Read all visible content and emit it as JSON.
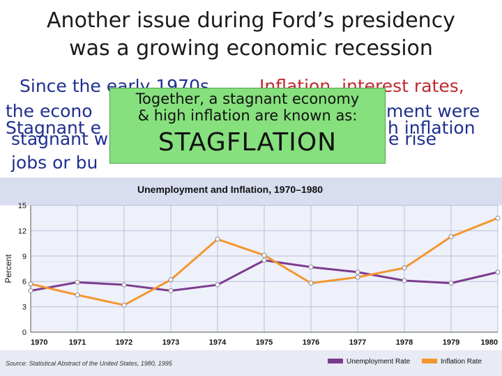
{
  "slide": {
    "title_line1": "Another issue during Ford’s presidency",
    "title_line2": "was a growing economic recession",
    "bg_lines": [
      "Since the early 1970s…",
      "Inflation, interest rates,",
      "the econo",
      "ment were",
      "Stagnant e",
      "h inflation",
      "stagnant w",
      "e rise",
      "jobs or bu"
    ],
    "callout_line1": "Together, a stagnant economy",
    "callout_line2": "& high inflation are known as:",
    "callout_big": "STAGFLATION",
    "colors": {
      "title_text": "#1a1a1a",
      "blue_text": "#1f2f8f",
      "red_text": "#c0282d",
      "callout_bg": "#86e07d"
    }
  },
  "chart_data": {
    "type": "line",
    "title": "Unemployment and Inflation, 1970–1980",
    "ylabel": "Percent",
    "x": [
      1970,
      1971,
      1972,
      1973,
      1974,
      1975,
      1976,
      1977,
      1978,
      1979,
      1980
    ],
    "x_tick_labels": [
      "1970",
      "1971",
      "1972",
      "1973",
      "1974",
      "1975",
      "1976",
      "1977",
      "1978",
      "1979",
      "1980"
    ],
    "y_ticks": [
      0,
      3,
      6,
      9,
      12,
      15
    ],
    "y_tick_labels": [
      "0",
      "3",
      "6",
      "9",
      "12",
      "15"
    ],
    "ylim": [
      0,
      15
    ],
    "grid": true,
    "legend_position": "bottom-right",
    "source": "Source: Statistical Abstract of the United States, 1980, 1995",
    "series": [
      {
        "name": "Unemployment Rate",
        "color": "#7b3b8f",
        "values": [
          4.9,
          5.9,
          5.6,
          4.9,
          5.6,
          8.5,
          7.7,
          7.1,
          6.1,
          5.8,
          7.1
        ]
      },
      {
        "name": "Inflation Rate",
        "color": "#f4962e",
        "values": [
          5.7,
          4.4,
          3.2,
          6.2,
          11.0,
          9.1,
          5.8,
          6.5,
          7.6,
          11.3,
          13.5
        ]
      }
    ]
  }
}
